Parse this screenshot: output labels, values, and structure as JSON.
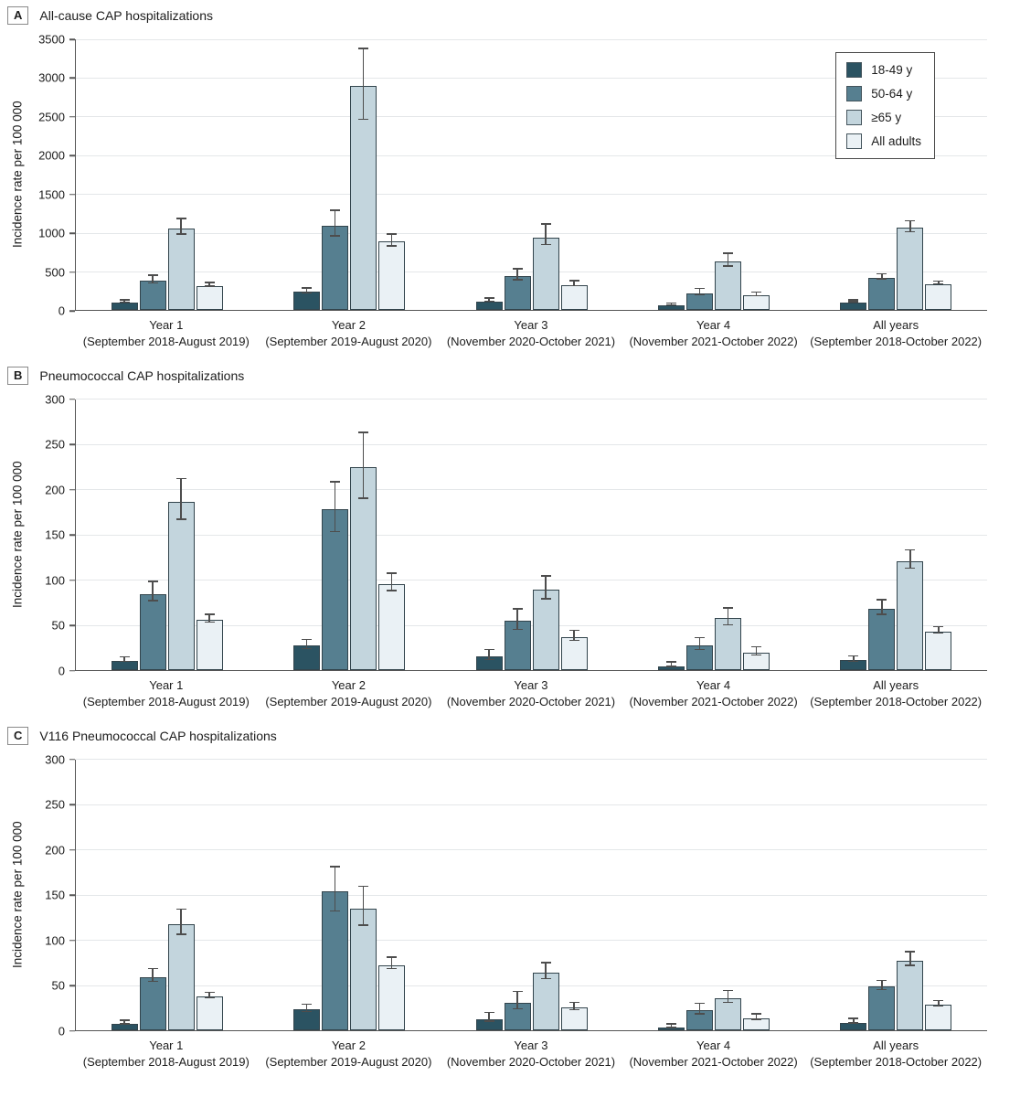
{
  "figure": {
    "ylabel": "Incidence rate per 100 000",
    "legend": {
      "items": [
        {
          "label": "18-49 y",
          "color": "#2b5362"
        },
        {
          "label": "50-64 y",
          "color": "#567f90"
        },
        {
          "label": "≥65 y",
          "color": "#c3d5dd"
        },
        {
          "label": "All adults",
          "color": "#eaf1f5"
        }
      ]
    },
    "colors": {
      "bar_border": "#32444c",
      "error_bar": "#4d4d4d",
      "gridline": "#e4e7e9",
      "axis": "#555555"
    }
  },
  "chart_data": [
    {
      "type": "bar",
      "panel": "A",
      "title": "All-cause CAP hospitalizations",
      "ylabel": "Incidence rate per 100 000",
      "ylim": [
        0,
        3500
      ],
      "ytick_step": 500,
      "grid": true,
      "legend_position": "top-right",
      "error_bars": true,
      "categories": [
        "Year 1",
        "Year 2",
        "Year 3",
        "Year 4",
        "All years"
      ],
      "category_periods": [
        "(September 2018-August 2019)",
        "(September 2019-August 2020)",
        "(November 2020-October 2021)",
        "(November 2021-October 2022)",
        "(September 2018-October 2022)"
      ],
      "series": [
        {
          "name": "18-49 y",
          "color": "#2b5362",
          "values": [
            95,
            230,
            110,
            55,
            95
          ],
          "ci_low": [
            82,
            200,
            90,
            45,
            85
          ],
          "ci_high": [
            110,
            262,
            133,
            66,
            107
          ]
        },
        {
          "name": "50-64 y",
          "color": "#567f90",
          "values": [
            372,
            1085,
            437,
            215,
            410
          ],
          "ci_low": [
            330,
            932,
            370,
            175,
            378
          ],
          "ci_high": [
            425,
            1262,
            510,
            255,
            445
          ]
        },
        {
          "name": "≥65 y",
          "color": "#c3d5dd",
          "values": [
            1050,
            2890,
            930,
            625,
            1055
          ],
          "ci_low": [
            960,
            2435,
            820,
            548,
            990
          ],
          "ci_high": [
            1160,
            3350,
            1085,
            710,
            1128
          ]
        },
        {
          "name": "All adults",
          "color": "#eaf1f5",
          "values": [
            308,
            880,
            322,
            185,
            330
          ],
          "ci_low": [
            286,
            806,
            292,
            164,
            314
          ],
          "ci_high": [
            332,
            956,
            354,
            207,
            348
          ]
        }
      ]
    },
    {
      "type": "bar",
      "panel": "B",
      "title": "Pneumococcal CAP hospitalizations",
      "ylabel": "Incidence rate per 100 000",
      "ylim": [
        0,
        300
      ],
      "ytick_step": 50,
      "grid": true,
      "legend_position": "none",
      "error_bars": true,
      "categories": [
        "Year 1",
        "Year 2",
        "Year 3",
        "Year 4",
        "All years"
      ],
      "category_periods": [
        "(September 2018-August 2019)",
        "(September 2019-August 2020)",
        "(November 2020-October 2021)",
        "(November 2021-October 2022)",
        "(September 2018-October 2022)"
      ],
      "series": [
        {
          "name": "18-49 y",
          "color": "#2b5362",
          "values": [
            10,
            27,
            15,
            4,
            11
          ],
          "ci_low": [
            8,
            22,
            10,
            2,
            8
          ],
          "ci_high": [
            13,
            32,
            21,
            7,
            14
          ]
        },
        {
          "name": "50-64 y",
          "color": "#567f90",
          "values": [
            84,
            178,
            54,
            27,
            68
          ],
          "ci_low": [
            75,
            151,
            43,
            21,
            60
          ],
          "ci_high": [
            96,
            206,
            66,
            34,
            76
          ]
        },
        {
          "name": "≥65 y",
          "color": "#c3d5dd",
          "values": [
            186,
            224,
            89,
            57,
            120
          ],
          "ci_low": [
            165,
            188,
            77,
            48,
            111
          ],
          "ci_high": [
            210,
            261,
            102,
            67,
            131
          ]
        },
        {
          "name": "All adults",
          "color": "#eaf1f5",
          "values": [
            55,
            95,
            36,
            19,
            42
          ],
          "ci_low": [
            51,
            86,
            31,
            15,
            39
          ],
          "ci_high": [
            60,
            105,
            42,
            24,
            46
          ]
        }
      ]
    },
    {
      "type": "bar",
      "panel": "C",
      "title": "V116 Pneumococcal CAP hospitalizations",
      "ylabel": "Incidence rate per 100 000",
      "ylim": [
        0,
        300
      ],
      "ytick_step": 50,
      "grid": true,
      "legend_position": "none",
      "error_bars": true,
      "categories": [
        "Year 1",
        "Year 2",
        "Year 3",
        "Year 4",
        "All years"
      ],
      "category_periods": [
        "(September 2018-August 2019)",
        "(September 2019-August 2020)",
        "(November 2020-October 2021)",
        "(November 2021-October 2022)",
        "(September 2018-October 2022)"
      ],
      "series": [
        {
          "name": "18-49 y",
          "color": "#2b5362",
          "values": [
            7,
            23,
            12,
            3,
            8
          ],
          "ci_low": [
            5,
            19,
            8,
            1,
            6
          ],
          "ci_high": [
            9,
            27,
            18,
            5,
            11
          ]
        },
        {
          "name": "50-64 y",
          "color": "#567f90",
          "values": [
            58,
            153,
            30,
            22,
            48
          ],
          "ci_low": [
            52,
            130,
            22,
            16,
            43
          ],
          "ci_high": [
            66,
            179,
            41,
            28,
            53
          ]
        },
        {
          "name": "≥65 y",
          "color": "#c3d5dd",
          "values": [
            117,
            134,
            63,
            35,
            77
          ],
          "ci_low": [
            104,
            114,
            55,
            29,
            70
          ],
          "ci_high": [
            132,
            157,
            73,
            42,
            85
          ]
        },
        {
          "name": "All adults",
          "color": "#eaf1f5",
          "values": [
            37,
            72,
            25,
            13,
            28
          ],
          "ci_low": [
            34,
            66,
            21,
            10,
            25
          ],
          "ci_high": [
            40,
            79,
            29,
            16,
            31
          ]
        }
      ]
    }
  ]
}
